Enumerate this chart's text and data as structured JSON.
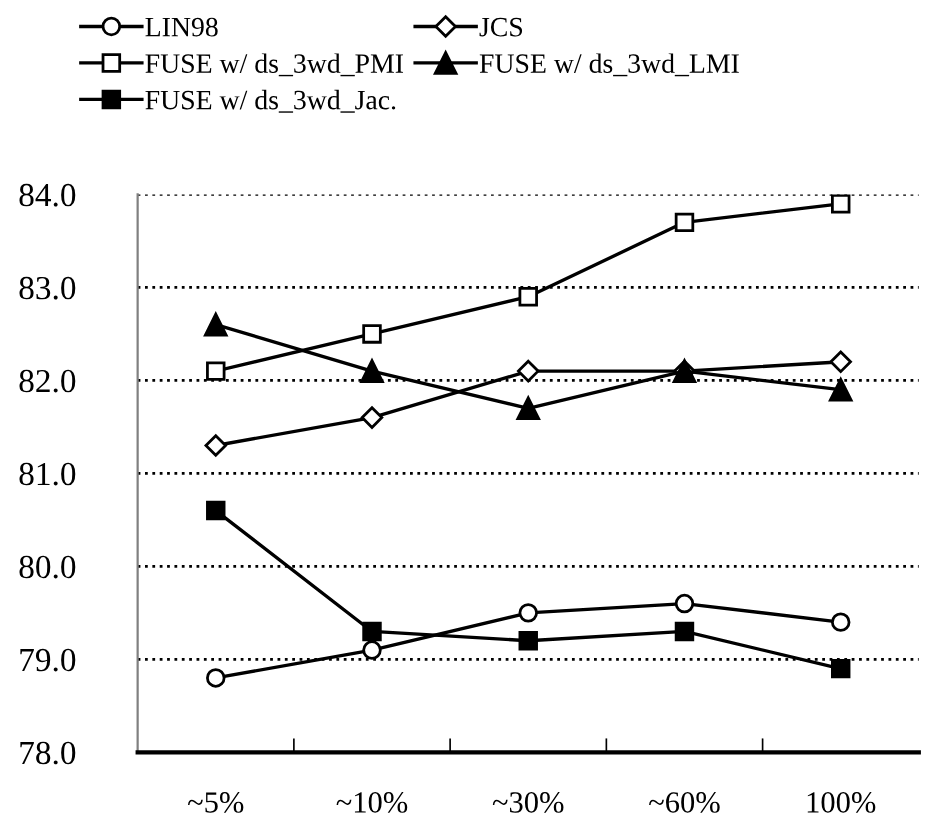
{
  "chart_data": {
    "type": "line",
    "categories": [
      "~5%",
      "~10%",
      "~30%",
      "~60%",
      "100%"
    ],
    "series": [
      {
        "name": "LIN98",
        "color": "#000000",
        "marker": "circle",
        "values": [
          78.8,
          79.1,
          79.5,
          79.6,
          79.4
        ]
      },
      {
        "name": "JCS",
        "color": "#000000",
        "marker": "diamond",
        "values": [
          81.3,
          81.6,
          82.1,
          82.1,
          82.2
        ]
      },
      {
        "name": "FUSE w/ ds_3wd_PMI",
        "color": "#000000",
        "marker": "square",
        "values": [
          82.1,
          82.5,
          82.9,
          83.7,
          83.9
        ]
      },
      {
        "name": "FUSE w/ ds_3wd_LMI",
        "color": "#000000",
        "marker": "triangle",
        "values": [
          82.6,
          82.1,
          81.7,
          82.1,
          81.9
        ]
      },
      {
        "name": "FUSE w/ ds_3wd_Jac.",
        "color": "#000000",
        "marker": "square",
        "values": [
          80.6,
          79.3,
          79.2,
          79.3,
          78.9
        ]
      }
    ],
    "ylim": [
      78,
      84
    ],
    "yticks": [
      {
        "value": 78,
        "label": "78.0"
      },
      {
        "value": 79,
        "label": "79.0"
      },
      {
        "value": 80,
        "label": "80.0"
      },
      {
        "value": 81,
        "label": "81.0"
      },
      {
        "value": 82,
        "label": "82.0"
      },
      {
        "value": 83,
        "label": "83.0"
      },
      {
        "value": 84,
        "label": "84.0"
      }
    ],
    "grid": "y",
    "legend": "top",
    "line_style": "solid"
  }
}
